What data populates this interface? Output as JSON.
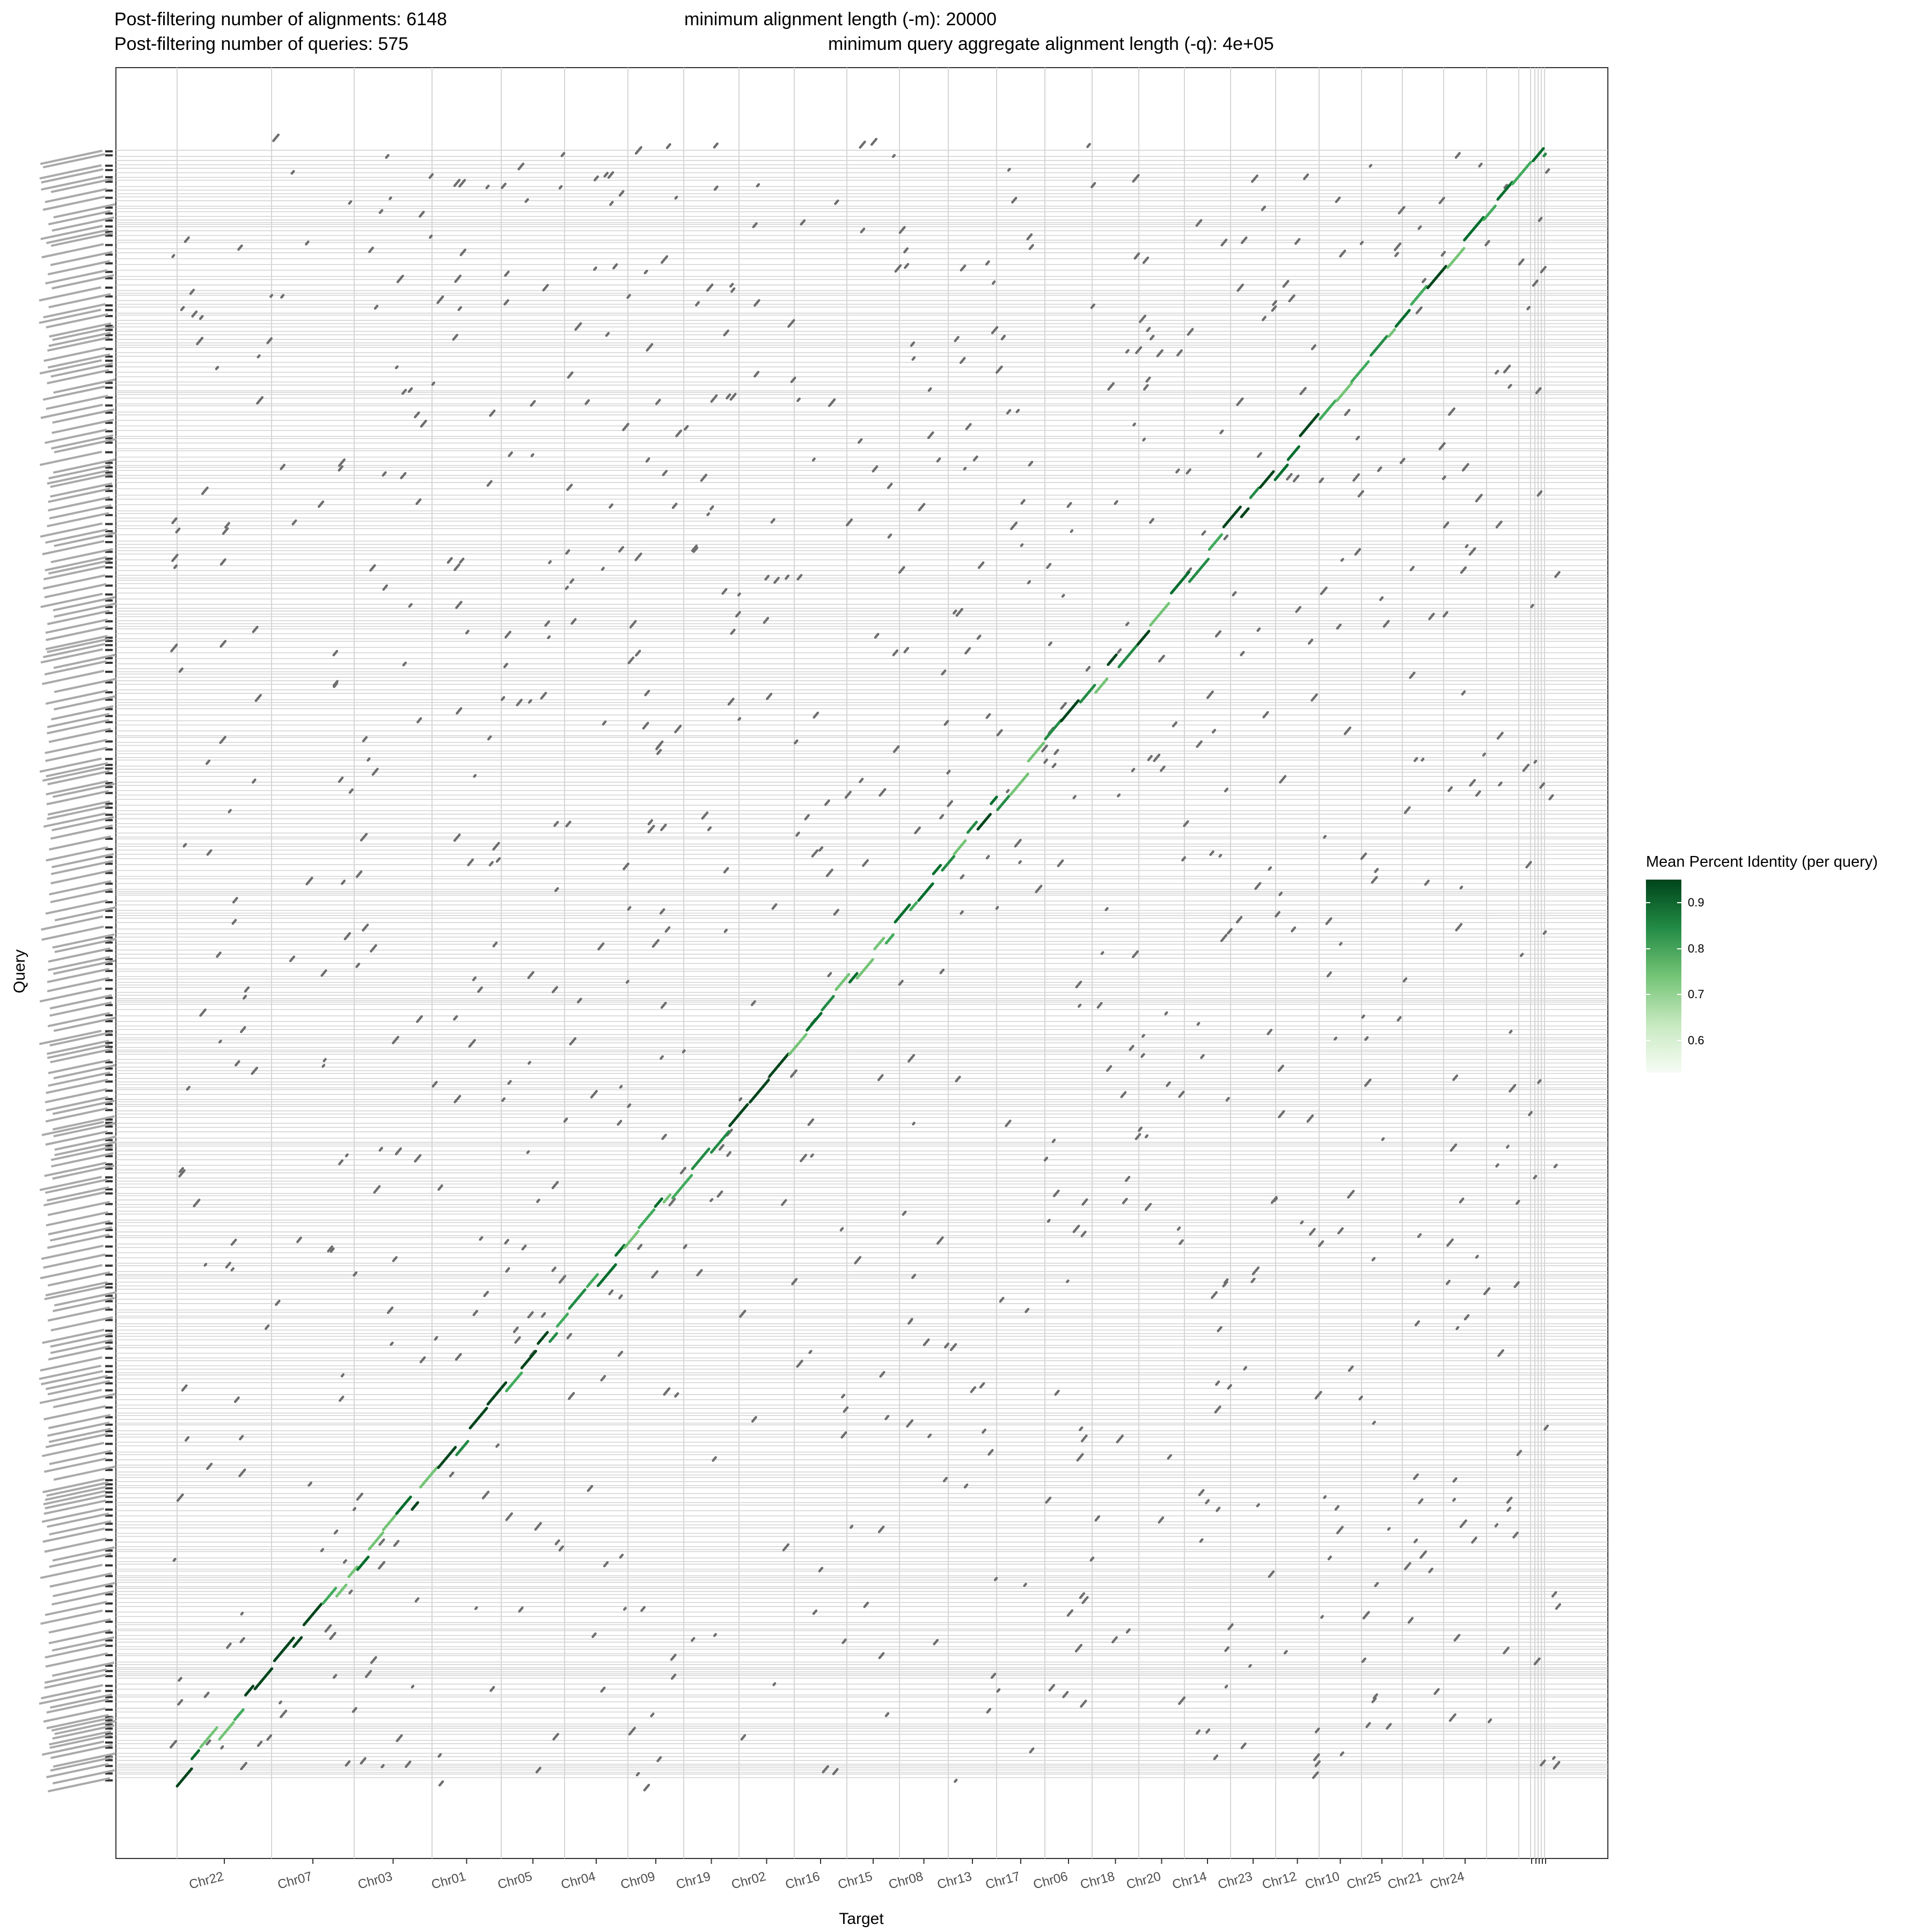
{
  "header": {
    "alignments": "Post-filtering number of alignments: 6148",
    "queries": "Post-filtering number of queries: 575",
    "min_alignment": "minimum alignment length (-m): 20000",
    "min_query_aggregate": "minimum query aggregate alignment length (-q): 4e+05"
  },
  "chart_data": {
    "type": "scatter",
    "title": "",
    "xlabel": "Target",
    "ylabel": "Query",
    "x_tick_labels": [
      "Chr22",
      "Chr07",
      "Chr03",
      "Chr01",
      "Chr05",
      "Chr04",
      "Chr09",
      "Chr19",
      "Chr02",
      "Chr16",
      "Chr15",
      "Chr08",
      "Chr13",
      "Chr17",
      "Chr06",
      "Chr18",
      "Chr20",
      "Chr14",
      "Chr23",
      "Chr12",
      "Chr10",
      "Chr25",
      "Chr21",
      "Chr24"
    ],
    "x_tick_labels_unreadable": "several small unplaced scaffolds at far right (labels overlapping, illegible)",
    "y_tick_labels": "575 query contig names (overlapping, mostly illegible; prefix QBIY0101)",
    "grid": true,
    "legend": {
      "title": "Mean Percent Identity (per query)",
      "ticks": [
        "0.9",
        "0.8",
        "0.7",
        "0.6"
      ],
      "tick_values": [
        0.9,
        0.8,
        0.7,
        0.6
      ],
      "range": [
        0.53,
        0.95
      ],
      "colors": [
        "#f7fcf5",
        "#c7e9c0",
        "#74c476",
        "#238b45",
        "#00441b"
      ],
      "placement": "right"
    },
    "on_target_color": "#2e8b4a",
    "off_target_color": "#6e6e6e",
    "description_series": [
      {
        "name": "",
        "kind": "main diagonal alignments",
        "x_from": 0,
        "x_to": 1,
        "y_from": 0,
        "y_to": 1
      },
      {
        "name": "",
        "kind": "scattered off-diagonal alignments",
        "count_shown": 6148
      }
    ]
  }
}
